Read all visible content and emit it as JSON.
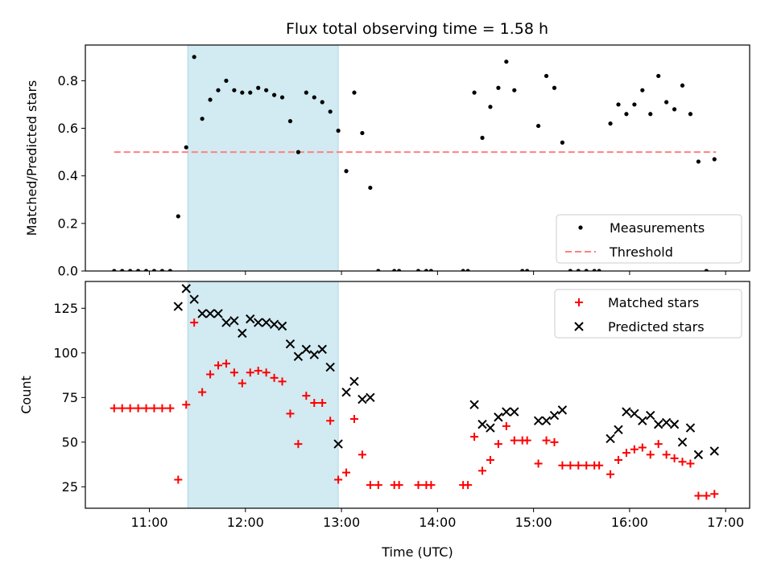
{
  "figure": {
    "title": "Flux total observing time = 1.58 h"
  },
  "chart_data": [
    {
      "type": "scatter",
      "title": "Flux total observing time = 1.58 h",
      "xlabel": "",
      "ylabel": "Matched/Predicted stars",
      "xlim": [
        "10:20",
        "17:15"
      ],
      "ylim": [
        0,
        0.95
      ],
      "xticks": [
        "11:00",
        "12:00",
        "13:00",
        "14:00",
        "15:00",
        "16:00",
        "17:00"
      ],
      "yticks": [
        "0.0",
        "0.2",
        "0.4",
        "0.6",
        "0.8"
      ],
      "shaded_interval": {
        "start": "11:24",
        "end": "12:58",
        "color": "#add8e6"
      },
      "legend_position": "lower right",
      "threshold": {
        "name": "Threshold",
        "value": 0.5,
        "x_start": "10:38",
        "x_end": "16:54",
        "color": "#ff8080",
        "style": "dashed"
      },
      "series": [
        {
          "name": "Measurements",
          "color": "#000000",
          "marker": "dot",
          "points": [
            [
              "10:38",
              0
            ],
            [
              "10:43",
              0
            ],
            [
              "10:48",
              0
            ],
            [
              "10:53",
              0
            ],
            [
              "10:58",
              0
            ],
            [
              "11:03",
              0
            ],
            [
              "11:08",
              0
            ],
            [
              "11:13",
              0
            ],
            [
              "11:18",
              0.23
            ],
            [
              "11:23",
              0.52
            ],
            [
              "11:28",
              0.9
            ],
            [
              "11:33",
              0.64
            ],
            [
              "11:38",
              0.72
            ],
            [
              "11:43",
              0.76
            ],
            [
              "11:48",
              0.8
            ],
            [
              "11:53",
              0.76
            ],
            [
              "11:58",
              0.75
            ],
            [
              "12:03",
              0.75
            ],
            [
              "12:08",
              0.77
            ],
            [
              "12:13",
              0.76
            ],
            [
              "12:18",
              0.74
            ],
            [
              "12:23",
              0.73
            ],
            [
              "12:28",
              0.63
            ],
            [
              "12:33",
              0.5
            ],
            [
              "12:38",
              0.75
            ],
            [
              "12:43",
              0.73
            ],
            [
              "12:48",
              0.71
            ],
            [
              "12:53",
              0.67
            ],
            [
              "12:58",
              0.59
            ],
            [
              "13:03",
              0.42
            ],
            [
              "13:08",
              0.75
            ],
            [
              "13:13",
              0.58
            ],
            [
              "13:18",
              0.35
            ],
            [
              "13:23",
              0
            ],
            [
              "13:33",
              0
            ],
            [
              "13:36",
              0
            ],
            [
              "13:48",
              0
            ],
            [
              "13:53",
              0
            ],
            [
              "13:56",
              0
            ],
            [
              "14:16",
              0
            ],
            [
              "14:19",
              0
            ],
            [
              "14:23",
              0.75
            ],
            [
              "14:28",
              0.56
            ],
            [
              "14:33",
              0.69
            ],
            [
              "14:38",
              0.77
            ],
            [
              "14:43",
              0.88
            ],
            [
              "14:48",
              0.76
            ],
            [
              "14:53",
              0
            ],
            [
              "14:56",
              0
            ],
            [
              "15:03",
              0.61
            ],
            [
              "15:08",
              0.82
            ],
            [
              "15:13",
              0.77
            ],
            [
              "15:18",
              0.54
            ],
            [
              "15:23",
              0
            ],
            [
              "15:28",
              0
            ],
            [
              "15:33",
              0
            ],
            [
              "15:38",
              0
            ],
            [
              "15:41",
              0
            ],
            [
              "15:48",
              0.62
            ],
            [
              "15:53",
              0.7
            ],
            [
              "15:58",
              0.66
            ],
            [
              "16:03",
              0.7
            ],
            [
              "16:08",
              0.76
            ],
            [
              "16:13",
              0.66
            ],
            [
              "16:18",
              0.82
            ],
            [
              "16:23",
              0.71
            ],
            [
              "16:28",
              0.68
            ],
            [
              "16:33",
              0.78
            ],
            [
              "16:38",
              0.66
            ],
            [
              "16:43",
              0.46
            ],
            [
              "16:48",
              0
            ],
            [
              "16:53",
              0.47
            ]
          ]
        }
      ]
    },
    {
      "type": "scatter",
      "title": "",
      "xlabel": "Time (UTC)",
      "ylabel": "Count",
      "xlim": [
        "10:20",
        "17:15"
      ],
      "ylim": [
        13,
        140
      ],
      "xticks": [
        "11:00",
        "12:00",
        "13:00",
        "14:00",
        "15:00",
        "16:00",
        "17:00"
      ],
      "yticks": [
        "25",
        "50",
        "75",
        "100",
        "125"
      ],
      "shaded_interval": {
        "start": "11:24",
        "end": "12:58",
        "color": "#add8e6"
      },
      "legend_position": "upper right",
      "series": [
        {
          "name": "Matched stars",
          "color": "#ff0000",
          "marker": "plus",
          "points": [
            [
              "10:38",
              69
            ],
            [
              "10:43",
              69
            ],
            [
              "10:48",
              69
            ],
            [
              "10:53",
              69
            ],
            [
              "10:58",
              69
            ],
            [
              "11:03",
              69
            ],
            [
              "11:08",
              69
            ],
            [
              "11:13",
              69
            ],
            [
              "11:18",
              29
            ],
            [
              "11:23",
              71
            ],
            [
              "11:28",
              117
            ],
            [
              "11:33",
              78
            ],
            [
              "11:38",
              88
            ],
            [
              "11:43",
              93
            ],
            [
              "11:48",
              94
            ],
            [
              "11:53",
              89
            ],
            [
              "11:58",
              83
            ],
            [
              "12:03",
              89
            ],
            [
              "12:08",
              90
            ],
            [
              "12:13",
              89
            ],
            [
              "12:18",
              86
            ],
            [
              "12:23",
              84
            ],
            [
              "12:28",
              66
            ],
            [
              "12:33",
              49
            ],
            [
              "12:38",
              76
            ],
            [
              "12:43",
              72
            ],
            [
              "12:48",
              72
            ],
            [
              "12:53",
              62
            ],
            [
              "12:58",
              29
            ],
            [
              "13:03",
              33
            ],
            [
              "13:08",
              63
            ],
            [
              "13:13",
              43
            ],
            [
              "13:18",
              26
            ],
            [
              "13:23",
              26
            ],
            [
              "13:33",
              26
            ],
            [
              "13:36",
              26
            ],
            [
              "13:48",
              26
            ],
            [
              "13:53",
              26
            ],
            [
              "13:56",
              26
            ],
            [
              "14:16",
              26
            ],
            [
              "14:19",
              26
            ],
            [
              "14:23",
              53
            ],
            [
              "14:28",
              34
            ],
            [
              "14:33",
              40
            ],
            [
              "14:38",
              49
            ],
            [
              "14:43",
              59
            ],
            [
              "14:48",
              51
            ],
            [
              "14:53",
              51
            ],
            [
              "14:56",
              51
            ],
            [
              "15:03",
              38
            ],
            [
              "15:08",
              51
            ],
            [
              "15:13",
              50
            ],
            [
              "15:18",
              37
            ],
            [
              "15:23",
              37
            ],
            [
              "15:28",
              37
            ],
            [
              "15:33",
              37
            ],
            [
              "15:38",
              37
            ],
            [
              "15:41",
              37
            ],
            [
              "15:48",
              32
            ],
            [
              "15:53",
              40
            ],
            [
              "15:58",
              44
            ],
            [
              "16:03",
              46
            ],
            [
              "16:08",
              47
            ],
            [
              "16:13",
              43
            ],
            [
              "16:18",
              49
            ],
            [
              "16:23",
              43
            ],
            [
              "16:28",
              41
            ],
            [
              "16:33",
              39
            ],
            [
              "16:38",
              38
            ],
            [
              "16:43",
              20
            ],
            [
              "16:48",
              20
            ],
            [
              "16:53",
              21
            ]
          ]
        },
        {
          "name": "Predicted stars",
          "color": "#000000",
          "marker": "x",
          "points": [
            [
              "11:18",
              126
            ],
            [
              "11:23",
              136
            ],
            [
              "11:28",
              130
            ],
            [
              "11:33",
              122
            ],
            [
              "11:38",
              122
            ],
            [
              "11:43",
              122
            ],
            [
              "11:48",
              117
            ],
            [
              "11:53",
              118
            ],
            [
              "11:58",
              111
            ],
            [
              "12:03",
              119
            ],
            [
              "12:08",
              117
            ],
            [
              "12:13",
              117
            ],
            [
              "12:18",
              116
            ],
            [
              "12:23",
              115
            ],
            [
              "12:28",
              105
            ],
            [
              "12:33",
              98
            ],
            [
              "12:38",
              102
            ],
            [
              "12:43",
              99
            ],
            [
              "12:48",
              102
            ],
            [
              "12:53",
              92
            ],
            [
              "12:58",
              49
            ],
            [
              "13:03",
              78
            ],
            [
              "13:08",
              84
            ],
            [
              "13:13",
              74
            ],
            [
              "13:18",
              75
            ],
            [
              "14:23",
              71
            ],
            [
              "14:28",
              60
            ],
            [
              "14:33",
              58
            ],
            [
              "14:38",
              64
            ],
            [
              "14:43",
              67
            ],
            [
              "14:48",
              67
            ],
            [
              "15:03",
              62
            ],
            [
              "15:08",
              62
            ],
            [
              "15:13",
              65
            ],
            [
              "15:18",
              68
            ],
            [
              "15:48",
              52
            ],
            [
              "15:53",
              57
            ],
            [
              "15:58",
              67
            ],
            [
              "16:03",
              66
            ],
            [
              "16:08",
              62
            ],
            [
              "16:13",
              65
            ],
            [
              "16:18",
              60
            ],
            [
              "16:23",
              61
            ],
            [
              "16:28",
              60
            ],
            [
              "16:33",
              50
            ],
            [
              "16:38",
              58
            ],
            [
              "16:43",
              43
            ],
            [
              "16:53",
              45
            ]
          ]
        }
      ]
    }
  ]
}
